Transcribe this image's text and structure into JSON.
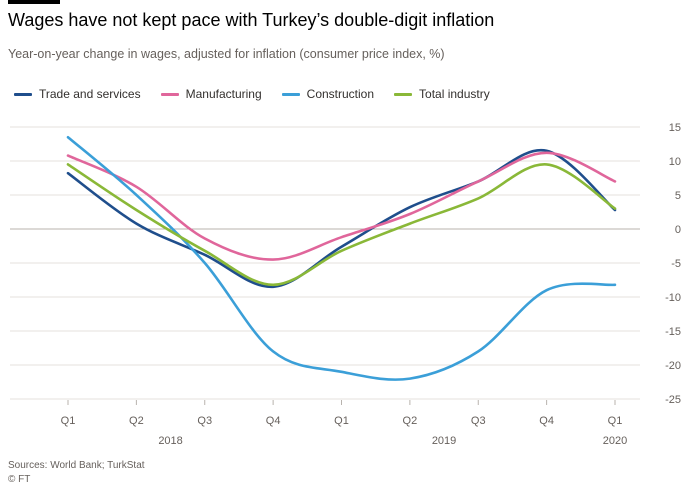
{
  "header": {
    "title": "Wages have not kept pace with Turkey’s double-digit inflation",
    "subtitle": "Year-on-year change in wages, adjusted for inflation (consumer price index, %)"
  },
  "footer": {
    "source": "Sources: World Bank; TurkStat",
    "copyright": "© FT"
  },
  "chart_data": {
    "type": "line",
    "title": "Wages have not kept pace with Turkey’s double-digit inflation",
    "subtitle": "Year-on-year change in wages, adjusted for inflation (consumer price index, %)",
    "xlabel": "",
    "ylabel": "",
    "x": [
      "Q1 2018",
      "Q2 2018",
      "Q3 2018",
      "Q4 2018",
      "Q1 2019",
      "Q2 2019",
      "Q3 2019",
      "Q4 2019",
      "Q1 2020"
    ],
    "x_tick_labels": [
      "Q1",
      "Q2",
      "Q3",
      "Q4",
      "Q1",
      "Q2",
      "Q3",
      "Q4",
      "Q1"
    ],
    "x_year_labels": [
      {
        "label": "2018",
        "index": 1.5
      },
      {
        "label": "2019",
        "index": 5.5
      },
      {
        "label": "2020",
        "index": 8
      }
    ],
    "ylim": [
      -25,
      15
    ],
    "y_ticks": [
      15,
      10,
      5,
      0,
      -5,
      -10,
      -15,
      -20,
      -25
    ],
    "y_axis_side": "right",
    "grid": true,
    "legend_position": "top-left",
    "series": [
      {
        "name": "Trade and services",
        "color": "#1f4e8c",
        "values": [
          8.2,
          0.8,
          -3.8,
          -8.5,
          -2.6,
          3.2,
          7.0,
          11.5,
          2.8
        ]
      },
      {
        "name": "Manufacturing",
        "color": "#e0669b",
        "values": [
          10.8,
          6.2,
          -1.4,
          -4.5,
          -1.2,
          2.2,
          7.0,
          11.2,
          7.0
        ]
      },
      {
        "name": "Construction",
        "color": "#3b9fd8",
        "values": [
          13.5,
          5.0,
          -5.0,
          -18.0,
          -21.0,
          -22.0,
          -18.0,
          -9.0,
          -8.2
        ]
      },
      {
        "name": "Total industry",
        "color": "#8ab838",
        "values": [
          9.5,
          2.8,
          -3.2,
          -8.2,
          -3.2,
          0.8,
          4.5,
          9.5,
          3.0
        ]
      }
    ]
  }
}
